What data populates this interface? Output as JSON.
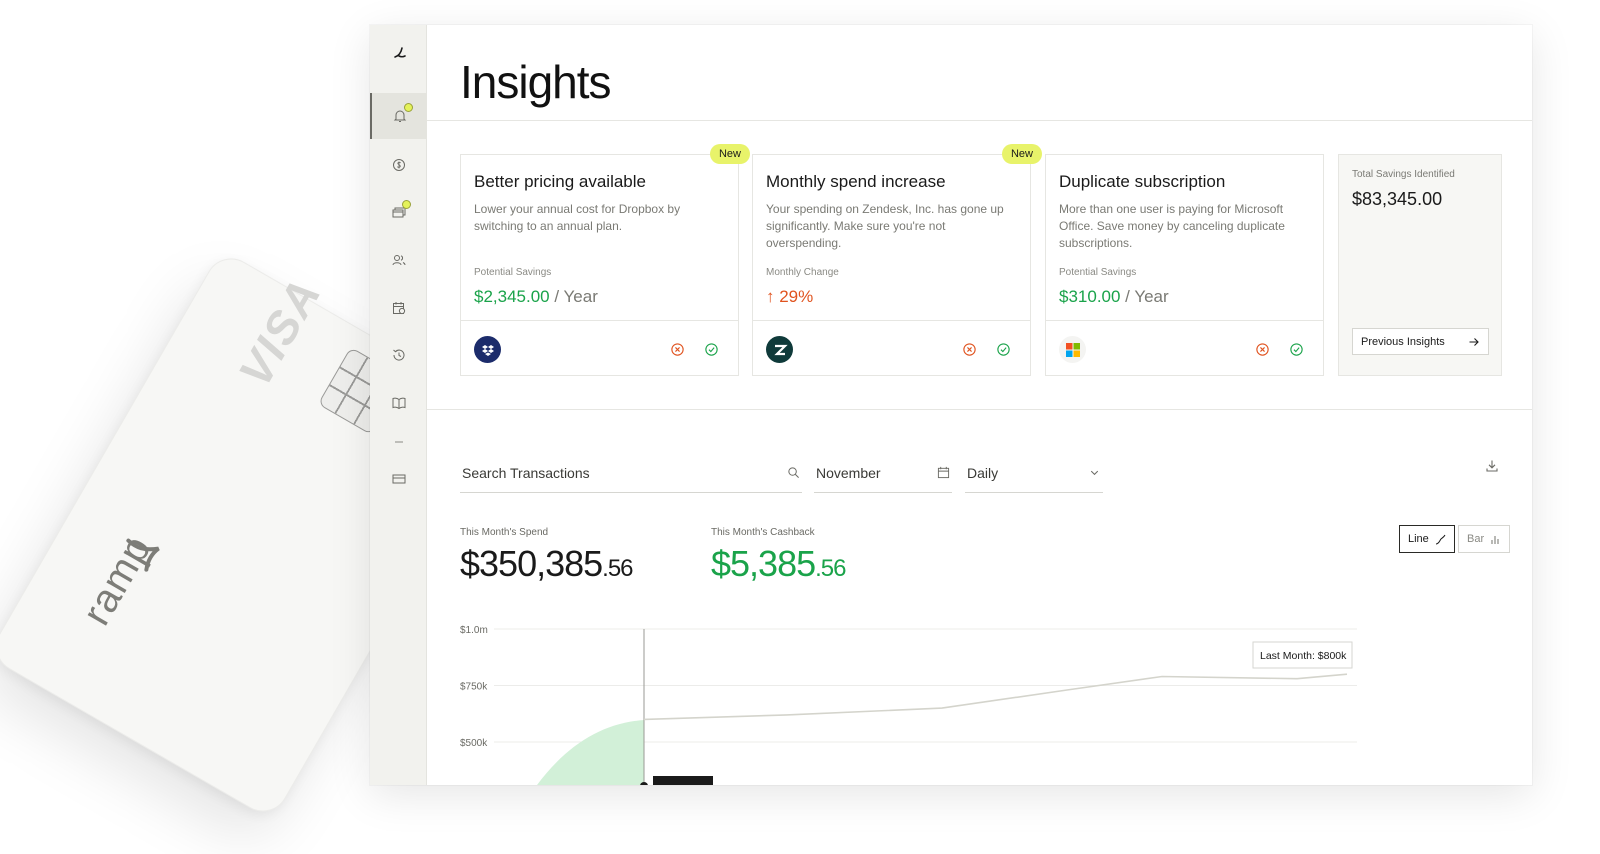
{
  "card": {
    "network": "VISA",
    "brand": "ramp"
  },
  "sidebar": {
    "items": [
      {
        "icon": "ramp-logo-icon"
      },
      {
        "icon": "bell-icon",
        "active": true,
        "dot": true
      },
      {
        "icon": "dollar-icon"
      },
      {
        "icon": "cards-icon",
        "dot": true
      },
      {
        "icon": "users-icon"
      },
      {
        "icon": "calendar-icon"
      },
      {
        "icon": "history-icon"
      },
      {
        "icon": "book-icon"
      },
      {
        "icon": "divider"
      },
      {
        "icon": "card-icon"
      }
    ]
  },
  "page": {
    "title": "Insights"
  },
  "insights": [
    {
      "title": "Better pricing available",
      "badge": "New",
      "description": "Lower your annual cost for Dropbox by switching to an annual plan.",
      "metric_label": "Potential Savings",
      "metric_value": "$2,345.00",
      "metric_unit": " / Year",
      "logo": "dropbox-logo"
    },
    {
      "title": "Monthly spend increase",
      "badge": "New",
      "description": "Your spending on Zendesk, Inc. has gone up significantly. Make sure you're not overspending.",
      "metric_label": "Monthly Change",
      "metric_value": "↑ 29%",
      "metric_unit": "",
      "logo": "zendesk-logo"
    },
    {
      "title": "Duplicate subscription",
      "badge": "",
      "description": "More than one user is paying for Microsoft Office. Save money by canceling duplicate subscriptions.",
      "metric_label": "Potential Savings",
      "metric_value": "$310.00",
      "metric_unit": " / Year",
      "logo": "microsoft-logo"
    }
  ],
  "savings": {
    "label": "Total Savings Identified",
    "value": "$83,345.00",
    "button": "Previous Insights"
  },
  "filters": {
    "search_placeholder": "Search Transactions",
    "month": "November",
    "interval": "Daily"
  },
  "stats": {
    "spend_label": "This Month's Spend",
    "spend_main": "$350,385",
    "spend_cents": ".56",
    "cashback_label": "This Month's Cashback",
    "cashback_main": "$5,385",
    "cashback_cents": ".56"
  },
  "toggles": {
    "line": "Line",
    "bar": "Bar"
  },
  "colors": {
    "accent_green": "#1aa34a",
    "badge_yellow": "#e8f36a",
    "orange": "#e0531f"
  },
  "chart_data": {
    "type": "line",
    "y_ticks": [
      "$1.0m",
      "$750k",
      "$500k"
    ],
    "ylim": [
      0,
      1000000
    ],
    "tooltip": "Last Month: $800k",
    "last_month_series": {
      "values": [
        600000,
        620000,
        650000,
        730000,
        790000,
        780000,
        800000
      ]
    }
  }
}
